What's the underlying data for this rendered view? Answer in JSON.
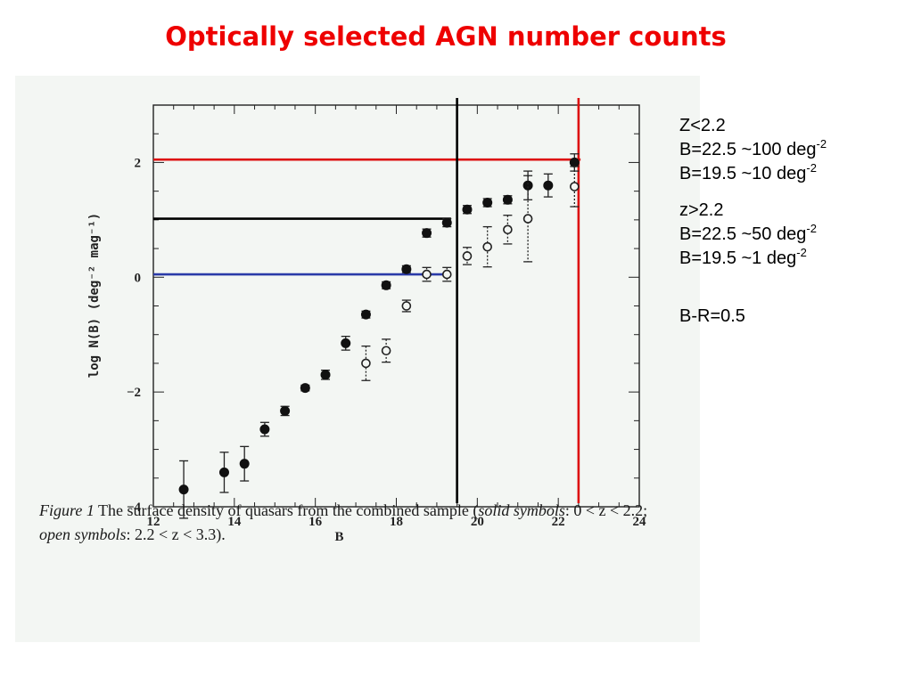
{
  "title": "Optically selected AGN number counts",
  "colors": {
    "title": "#ee0000",
    "red_lines": "#dd1111",
    "blue_line": "#2a3aa8",
    "black_lines": "#000000",
    "panel_bg": "#f3f6f3"
  },
  "notes": {
    "low_z": {
      "heading": "Z<2.2",
      "line1": {
        "text": "B=22.5 ~100 deg",
        "sup": "-2"
      },
      "line2": {
        "text": "B=19.5 ~10 deg",
        "sup": "-2"
      }
    },
    "high_z": {
      "heading": "z>2.2",
      "line1": {
        "text": "B=22.5 ~50 deg",
        "sup": "-2"
      },
      "line2": {
        "text": "B=19.5 ~1 deg",
        "sup": "-2"
      }
    },
    "color": "B-R=0.5"
  },
  "caption": {
    "fig_label": "Figure 1",
    "text_a": "  The surface density of quasars from the combined sample (",
    "solid": "solid symbols",
    "text_b": ": 0 < z < 2.2; ",
    "open": "open symbols",
    "text_c": ": 2.2 < z < 3.3)."
  },
  "chart_data": {
    "type": "scatter",
    "title": "",
    "xlabel": "B",
    "ylabel": "log N(B) (deg⁻² mag⁻¹)",
    "xlim": [
      12,
      24
    ],
    "ylim": [
      -4,
      3
    ],
    "xticks": [
      12,
      14,
      16,
      18,
      20,
      22,
      24
    ],
    "yticks": [
      -4,
      -2,
      0,
      2
    ],
    "series": [
      {
        "name": "solid symbols",
        "marker": "filled",
        "x": [
          12.75,
          13.75,
          14.25,
          14.75,
          15.25,
          15.75,
          16.25,
          16.75,
          17.25,
          17.75,
          18.25,
          18.75,
          19.25,
          19.75,
          20.25,
          20.75,
          21.25,
          21.75,
          22.4
        ],
        "y": [
          -3.7,
          -3.4,
          -3.25,
          -2.65,
          -2.33,
          -1.93,
          -1.7,
          -1.15,
          -0.65,
          -0.14,
          0.14,
          0.77,
          0.95,
          1.18,
          1.3,
          1.35,
          1.6,
          1.6,
          2.0
        ],
        "err": [
          0.5,
          0.35,
          0.3,
          0.12,
          0.08,
          0.05,
          0.08,
          0.12,
          0.06,
          0.06,
          0.06,
          0.07,
          0.07,
          0.07,
          0.07,
          0.07,
          0.25,
          0.2,
          0.15
        ]
      },
      {
        "name": "open symbols",
        "marker": "open",
        "x": [
          17.25,
          17.75,
          18.25,
          18.75,
          19.25,
          19.75,
          20.25,
          20.75,
          21.25,
          22.4
        ],
        "y": [
          -1.5,
          -1.28,
          -0.5,
          0.05,
          0.05,
          0.37,
          0.53,
          0.83,
          1.02,
          1.58
        ],
        "err": [
          0.3,
          0.2,
          0.1,
          0.12,
          0.12,
          0.15,
          0.35,
          0.25,
          0.75,
          0.35
        ]
      }
    ],
    "reference_lines": [
      {
        "orient": "h",
        "value": 2.05,
        "color": "red"
      },
      {
        "orient": "h",
        "value": 1.02,
        "color": "black"
      },
      {
        "orient": "h",
        "value": 0.05,
        "color": "blue"
      },
      {
        "orient": "v",
        "value": 19.5,
        "color": "black"
      },
      {
        "orient": "v",
        "value": 22.5,
        "color": "red"
      }
    ]
  }
}
